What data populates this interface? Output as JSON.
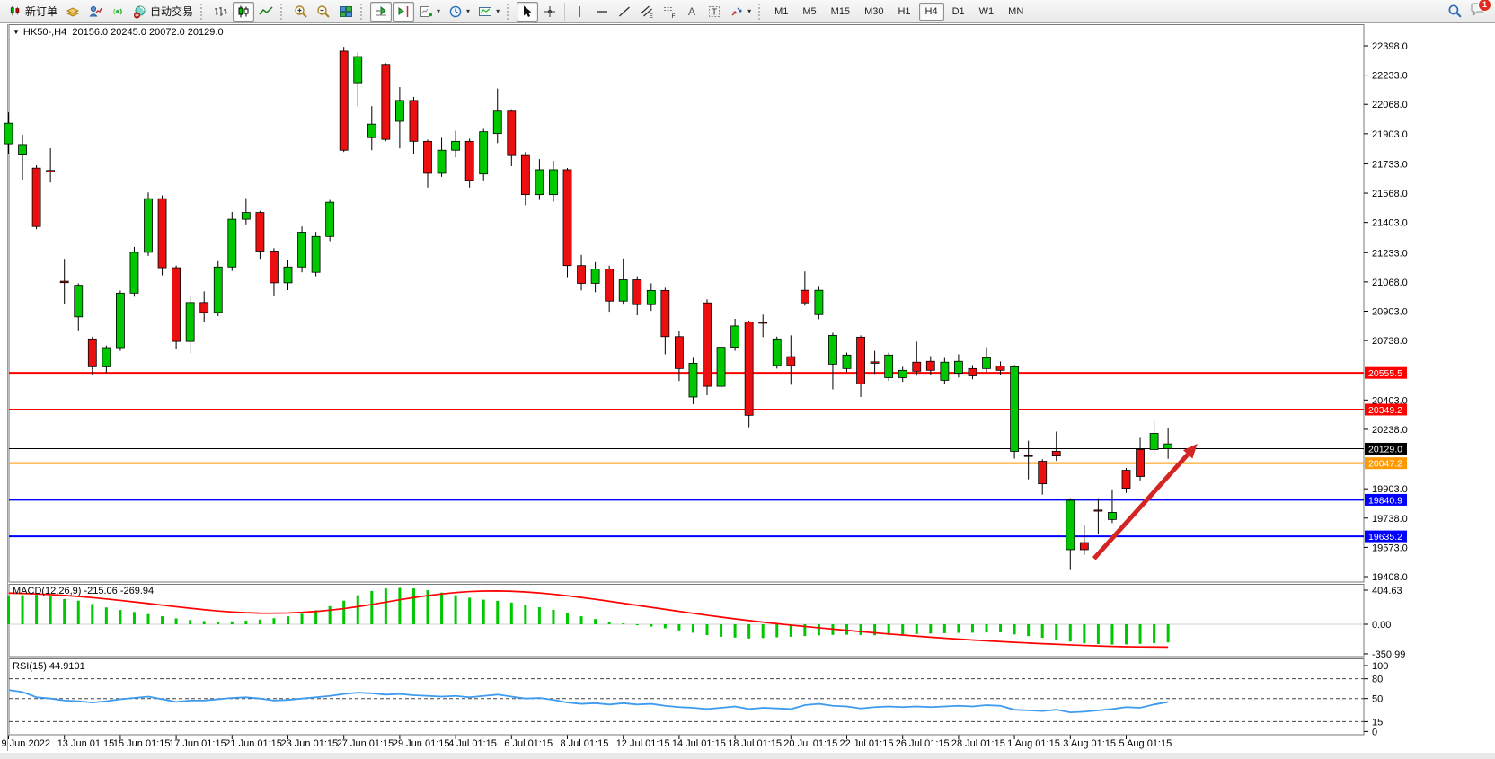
{
  "toolbar": {
    "new_order": "新订单",
    "auto_trading": "自动交易",
    "timeframes": [
      "M1",
      "M5",
      "M15",
      "M30",
      "H1",
      "H4",
      "D1",
      "W1",
      "MN"
    ],
    "active_timeframe": "H4",
    "chat_badge": "1",
    "glyphs": {
      "a": "A",
      "t": "T",
      "e": "E",
      "f": "F"
    }
  },
  "symbol_block": {
    "collapse_icon": "▼",
    "symbol": "HK50-,H4",
    "ohlc": "20156.0 20245.0 20072.0 20129.0"
  },
  "indicators": {
    "macd_label": "MACD(12,26,9) -215.06 -269.94",
    "rsi_label": "RSI(15) 44.9101"
  },
  "colors": {
    "bull": "#00c800",
    "bear": "#ec0f0f",
    "wick": "#000000",
    "macd_hist": "#00c800",
    "macd_signal": "#ff0000",
    "rsi_line": "#3e9bef",
    "line_red": "#ff0000",
    "line_orange": "#ff9900",
    "line_blue": "#0000ff",
    "line_black": "#000000",
    "arrow": "#d42525"
  },
  "chart_data": {
    "type": "candlestick",
    "symbol": "HK50-",
    "timeframe": "H4",
    "ylim": [
      19408,
      22398
    ],
    "price_axis_ticks": [
      "22398.0",
      "22233.0",
      "22068.0",
      "21903.0",
      "21733.0",
      "21568.0",
      "21403.0",
      "21233.0",
      "21068.0",
      "20903.0",
      "20738.0",
      "20403.0",
      "20238.0",
      "19903.0",
      "19738.0",
      "19573.0",
      "19408.0"
    ],
    "hlines": [
      {
        "price": 20555.5,
        "label": "20555.5",
        "color": "#ff0000",
        "w": 2
      },
      {
        "price": 20349.2,
        "label": "20349.2",
        "color": "#ff0000",
        "w": 2
      },
      {
        "price": 20129.0,
        "label": "20129.0",
        "color": "#000000",
        "w": 1
      },
      {
        "price": 20047.2,
        "label": "20047.2",
        "color": "#ff9900",
        "w": 2
      },
      {
        "price": 19840.9,
        "label": "19840.9",
        "color": "#0000ff",
        "w": 2
      },
      {
        "price": 19635.2,
        "label": "19635.2",
        "color": "#0000ff",
        "w": 2
      }
    ],
    "arrow": {
      "from_i": 77.7,
      "from_p": 19510,
      "to_i": 85.1,
      "to_p": 20157
    },
    "x_labels": [
      "9 Jun 2022",
      "13 Jun 01:15",
      "15 Jun 01:15",
      "17 Jun 01:15",
      "21 Jun 01:15",
      "23 Jun 01:15",
      "27 Jun 01:15",
      "29 Jun 01:15",
      "4 Jul 01:15",
      "6 Jul 01:15",
      "8 Jul 01:15",
      "12 Jul 01:15",
      "14 Jul 01:15",
      "18 Jul 01:15",
      "20 Jul 01:15",
      "22 Jul 01:15",
      "26 Jul 01:15",
      "28 Jul 01:15",
      "1 Aug 01:15",
      "3 Aug 01:15",
      "5 Aug 01:15"
    ],
    "x_label_step": 4,
    "candle_format": [
      "body_top",
      "body_bottom",
      "high",
      "low",
      "color"
    ],
    "candles": [
      [
        21962,
        21846,
        22023,
        21790,
        "g"
      ],
      [
        21842,
        21783,
        21897,
        21644,
        "g"
      ],
      [
        21709,
        21380,
        21725,
        21365,
        "r"
      ],
      [
        21696,
        21688,
        21821,
        21628,
        "r"
      ],
      [
        21072,
        21064,
        21198,
        20945,
        "r"
      ],
      [
        21049,
        20871,
        21060,
        20795,
        "g"
      ],
      [
        20747,
        20590,
        20760,
        20545,
        "r"
      ],
      [
        20698,
        20590,
        20710,
        20555,
        "g"
      ],
      [
        21005,
        20698,
        21020,
        20680,
        "g"
      ],
      [
        21235,
        21005,
        21265,
        20985,
        "g"
      ],
      [
        21537,
        21235,
        21572,
        21215,
        "g"
      ],
      [
        21537,
        21148,
        21555,
        21105,
        "r"
      ],
      [
        21148,
        20733,
        21160,
        20688,
        "r"
      ],
      [
        20952,
        20733,
        20990,
        20665,
        "g"
      ],
      [
        20952,
        20896,
        21015,
        20840,
        "r"
      ],
      [
        21152,
        20896,
        21185,
        20875,
        "g"
      ],
      [
        21421,
        21152,
        21462,
        21130,
        "g"
      ],
      [
        21459,
        21421,
        21540,
        21392,
        "g"
      ],
      [
        21459,
        21242,
        21468,
        21198,
        "r"
      ],
      [
        21242,
        21063,
        21258,
        20992,
        "r"
      ],
      [
        21152,
        21063,
        21192,
        21022,
        "g"
      ],
      [
        21348,
        21152,
        21380,
        21122,
        "g"
      ],
      [
        21324,
        21122,
        21350,
        21100,
        "g"
      ],
      [
        21517,
        21324,
        21530,
        21298,
        "g"
      ],
      [
        22368,
        21810,
        22392,
        21800,
        "r"
      ],
      [
        22337,
        22190,
        22360,
        22058,
        "g"
      ],
      [
        21957,
        21881,
        22058,
        21810,
        "g"
      ],
      [
        22293,
        21871,
        22300,
        21860,
        "r"
      ],
      [
        22090,
        21973,
        22165,
        21820,
        "g"
      ],
      [
        22090,
        21860,
        22110,
        21790,
        "r"
      ],
      [
        21860,
        21680,
        21870,
        21600,
        "r"
      ],
      [
        21810,
        21680,
        21880,
        21660,
        "g"
      ],
      [
        21860,
        21810,
        21920,
        21770,
        "g"
      ],
      [
        21860,
        21640,
        21875,
        21600,
        "r"
      ],
      [
        21914,
        21676,
        21930,
        21640,
        "g"
      ],
      [
        22030,
        21904,
        22157,
        21850,
        "g"
      ],
      [
        22030,
        21780,
        22040,
        21720,
        "r"
      ],
      [
        21780,
        21560,
        21800,
        21500,
        "r"
      ],
      [
        21700,
        21560,
        21760,
        21530,
        "g"
      ],
      [
        21700,
        21560,
        21750,
        21520,
        "g"
      ],
      [
        21700,
        21160,
        21710,
        21095,
        "r"
      ],
      [
        21160,
        21060,
        21220,
        21020,
        "r"
      ],
      [
        21140,
        21060,
        21180,
        21010,
        "g"
      ],
      [
        21140,
        20960,
        21160,
        20900,
        "r"
      ],
      [
        21080,
        20960,
        21200,
        20940,
        "g"
      ],
      [
        21080,
        20940,
        21100,
        20880,
        "r"
      ],
      [
        21020,
        20940,
        21060,
        20905,
        "g"
      ],
      [
        21020,
        20760,
        21035,
        20660,
        "r"
      ],
      [
        20760,
        20580,
        20790,
        20510,
        "r"
      ],
      [
        20610,
        20420,
        20640,
        20380,
        "g"
      ],
      [
        20950,
        20480,
        20970,
        20430,
        "r"
      ],
      [
        20700,
        20480,
        20750,
        20460,
        "g"
      ],
      [
        20820,
        20700,
        20860,
        20680,
        "g"
      ],
      [
        20843,
        20317,
        20850,
        20250,
        "r"
      ],
      [
        20841,
        20835,
        20884,
        20757,
        "r"
      ],
      [
        20747,
        20597,
        20760,
        20580,
        "g"
      ],
      [
        20647,
        20597,
        20767,
        20489,
        "r"
      ],
      [
        21021,
        20950,
        21127,
        20934,
        "r"
      ],
      [
        21021,
        20884,
        21046,
        20858,
        "g"
      ],
      [
        20767,
        20605,
        20782,
        20463,
        "g"
      ],
      [
        20656,
        20580,
        20670,
        20560,
        "g"
      ],
      [
        20757,
        20494,
        20767,
        20420,
        "r"
      ],
      [
        20618,
        20610,
        20680,
        20550,
        "r"
      ],
      [
        20656,
        20529,
        20670,
        20510,
        "g"
      ],
      [
        20570,
        20529,
        20590,
        20505,
        "g"
      ],
      [
        20616,
        20565,
        20732,
        20540,
        "r"
      ],
      [
        20621,
        20570,
        20650,
        20545,
        "r"
      ],
      [
        20616,
        20514,
        20640,
        20495,
        "g"
      ],
      [
        20621,
        20554,
        20660,
        20530,
        "g"
      ],
      [
        20580,
        20539,
        20600,
        20520,
        "r"
      ],
      [
        20641,
        20580,
        20700,
        20560,
        "g"
      ],
      [
        20595,
        20570,
        20620,
        20545,
        "r"
      ],
      [
        20590,
        20114,
        20600,
        20073,
        "g"
      ],
      [
        20090,
        20086,
        20174,
        19956,
        "r"
      ],
      [
        20058,
        19931,
        20070,
        19870,
        "r"
      ],
      [
        20114,
        20088,
        20225,
        20060,
        "r"
      ],
      [
        19838,
        19560,
        19850,
        19445,
        "g"
      ],
      [
        19600,
        19560,
        19700,
        19530,
        "r"
      ],
      [
        19783,
        19777,
        19850,
        19650,
        "r"
      ],
      [
        19770,
        19730,
        19900,
        19710,
        "g"
      ],
      [
        20007,
        19906,
        20020,
        19880,
        "r"
      ],
      [
        20124,
        19972,
        20190,
        19950,
        "r"
      ],
      [
        20215,
        20124,
        20286,
        20105,
        "g"
      ],
      [
        20156,
        20129,
        20245,
        20072,
        "g"
      ]
    ],
    "macd": {
      "label": "MACD(12,26,9) -215.06 -269.94",
      "axis_ticks": [
        "404.63",
        "0.00",
        "-350.99"
      ],
      "axis_values": [
        404.63,
        0,
        -350.99
      ],
      "hist": [
        330,
        345,
        350,
        330,
        300,
        280,
        240,
        200,
        170,
        145,
        120,
        95,
        70,
        50,
        38,
        30,
        34,
        42,
        55,
        72,
        95,
        125,
        165,
        215,
        280,
        345,
        395,
        425,
        432,
        425,
        405,
        375,
        345,
        315,
        292,
        278,
        258,
        232,
        202,
        172,
        135,
        95,
        62,
        32,
        10,
        -12,
        -28,
        -48,
        -72,
        -100,
        -128,
        -148,
        -158,
        -168,
        -163,
        -155,
        -148,
        -140,
        -132,
        -126,
        -124,
        -128,
        -130,
        -126,
        -120,
        -115,
        -110,
        -106,
        -102,
        -100,
        -97,
        -96,
        -120,
        -140,
        -160,
        -180,
        -205,
        -225,
        -235,
        -240,
        -238,
        -232,
        -224,
        -215.06
      ],
      "signal": [
        370,
        366,
        360,
        352,
        342,
        330,
        316,
        300,
        283,
        265,
        246,
        227,
        208,
        190,
        173,
        158,
        146,
        137,
        132,
        131,
        134,
        141,
        152,
        167,
        186,
        209,
        235,
        263,
        291,
        317,
        340,
        360,
        376,
        388,
        394,
        395,
        391,
        383,
        371,
        356,
        338,
        318,
        296,
        273,
        249,
        225,
        201,
        177,
        153,
        130,
        107,
        85,
        64,
        44,
        25,
        7,
        -10,
        -26,
        -42,
        -57,
        -72,
        -87,
        -101,
        -115,
        -128,
        -141,
        -153,
        -165,
        -176,
        -186,
        -196,
        -205,
        -214,
        -222,
        -230,
        -237,
        -244,
        -251,
        -257,
        -262,
        -266,
        -268,
        -269,
        -269.94
      ]
    },
    "rsi": {
      "label": "RSI(15) 44.9101",
      "axis_ticks": [
        "100",
        "80",
        "50",
        "15",
        "0"
      ],
      "axis_values": [
        100,
        80,
        50,
        15,
        0
      ],
      "dashed_levels": [
        80,
        50,
        15
      ],
      "values": [
        63,
        60,
        52,
        50,
        47,
        46,
        44,
        46,
        49,
        51,
        53,
        49,
        45,
        47,
        47,
        49,
        51,
        52,
        50,
        47,
        48,
        50,
        52,
        54,
        57,
        59,
        58,
        56,
        57,
        55,
        54,
        53,
        54,
        52,
        54,
        56,
        53,
        50,
        51,
        48,
        44,
        42,
        43,
        41,
        43,
        41,
        42,
        39,
        37,
        36,
        34,
        36,
        38,
        34,
        36,
        35,
        34,
        40,
        42,
        39,
        38,
        35,
        37,
        38,
        37,
        38,
        37,
        38,
        39,
        38,
        40,
        39,
        33,
        32,
        31,
        33,
        29,
        30,
        32,
        34,
        37,
        36,
        41,
        44.91
      ]
    }
  }
}
